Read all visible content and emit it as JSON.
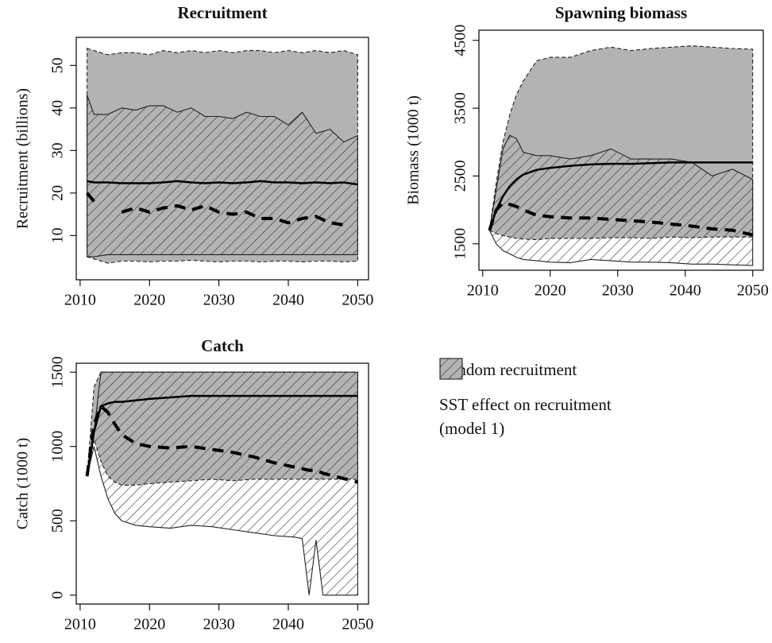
{
  "chart_data": [
    {
      "type": "line",
      "title": "Recruitment",
      "y_label": "Recruitment (billions)",
      "x": [
        2011,
        2012,
        2014,
        2016,
        2018,
        2020,
        2022,
        2024,
        2026,
        2028,
        2030,
        2032,
        2034,
        2036,
        2038,
        2040,
        2042,
        2044,
        2046,
        2048,
        2050
      ],
      "xlim": [
        2009.44,
        2051.56
      ],
      "xticks": [
        2010,
        2020,
        2030,
        2040,
        2050
      ],
      "ylim": [
        -0.4,
        56.6
      ],
      "yticks": [
        10,
        20,
        30,
        40,
        50
      ],
      "series": [
        {
          "kind": "band",
          "fill": "#b3b3b3",
          "edge": "dashed",
          "upper": [
            54,
            53.5,
            52.5,
            53,
            53,
            52.5,
            53.5,
            53,
            53.5,
            53,
            53.5,
            53,
            53.5,
            53.5,
            53,
            53.5,
            53,
            53.5,
            53,
            53.5,
            52.5
          ],
          "lower": [
            5,
            4.5,
            3.5,
            4,
            4,
            3.8,
            4,
            4,
            4.2,
            4,
            3.8,
            4,
            4,
            3.8,
            4,
            4,
            3.8,
            4,
            4,
            3.8,
            4
          ]
        },
        {
          "kind": "band",
          "fill": "hatch",
          "edge": "solid",
          "upper": [
            43,
            38.5,
            38.5,
            40,
            39.5,
            40.5,
            40.5,
            39,
            40,
            38,
            38,
            37.5,
            39,
            38,
            38,
            36,
            39,
            34,
            35,
            32,
            33.5
          ],
          "lower": [
            5,
            5,
            5.5,
            5.5,
            5.5,
            5.5,
            5.5,
            5.5,
            5.5,
            5.5,
            5.5,
            5.5,
            5.5,
            5.5,
            5.5,
            5.5,
            5.5,
            5.5,
            5.5,
            5.5,
            5.5
          ]
        },
        {
          "kind": "line",
          "dash": false,
          "values": [
            22.8,
            22.5,
            22.5,
            22.3,
            22.3,
            22.3,
            22.5,
            22.8,
            22.5,
            22.3,
            22.5,
            22.3,
            22.5,
            22.8,
            22.5,
            22.5,
            22.3,
            22.5,
            22.3,
            22.5,
            22
          ]
        },
        {
          "kind": "line",
          "dash": true,
          "values": [
            20,
            18,
            null,
            15.5,
            16.5,
            15.5,
            16.5,
            17,
            16,
            17,
            15.5,
            15,
            15.5,
            14,
            14,
            13,
            14,
            14.5,
            13,
            12.5,
            null
          ]
        }
      ]
    },
    {
      "type": "line",
      "title": "Spawning biomass",
      "y_label": "Biomass (1000 t)",
      "x": [
        2011,
        2012,
        2013,
        2014,
        2015,
        2016,
        2018,
        2020,
        2023,
        2026,
        2029,
        2032,
        2035,
        2038,
        2041,
        2044,
        2047,
        2050
      ],
      "xlim": [
        2009.44,
        2051.56
      ],
      "xticks": [
        2010,
        2020,
        2030,
        2040,
        2050
      ],
      "ylim": [
        1110,
        4650
      ],
      "yticks": [
        1500,
        2500,
        3500,
        4500
      ],
      "series": [
        {
          "kind": "band",
          "fill": "#b3b3b3",
          "edge": "dashed",
          "upper": [
            1700,
            2400,
            3000,
            3400,
            3700,
            3900,
            4200,
            4250,
            4250,
            4350,
            4400,
            4350,
            4380,
            4400,
            4420,
            4400,
            4380,
            4370
          ],
          "lower": [
            1700,
            1650,
            1620,
            1600,
            1580,
            1570,
            1560,
            1580,
            1580,
            1580,
            1590,
            1590,
            1580,
            1600,
            1590,
            1600,
            1600,
            1600
          ]
        },
        {
          "kind": "band",
          "fill": "hatch",
          "edge": "solid",
          "upper": [
            1700,
            2300,
            2900,
            3100,
            3050,
            2850,
            2800,
            2800,
            2750,
            2800,
            2900,
            2750,
            2750,
            2750,
            2700,
            2500,
            2600,
            2450
          ],
          "lower": [
            1700,
            1500,
            1400,
            1350,
            1300,
            1270,
            1250,
            1230,
            1220,
            1270,
            1250,
            1230,
            1230,
            1220,
            1200,
            1200,
            1190,
            1180
          ]
        },
        {
          "kind": "line",
          "dash": false,
          "values": [
            1700,
            2000,
            2200,
            2350,
            2450,
            2520,
            2590,
            2620,
            2650,
            2670,
            2680,
            2680,
            2690,
            2700,
            2700,
            2700,
            2700,
            2700
          ]
        },
        {
          "kind": "line",
          "dash": true,
          "values": [
            1700,
            2000,
            2100,
            2080,
            2050,
            2000,
            1920,
            1900,
            1880,
            1880,
            1860,
            1840,
            1820,
            1790,
            1760,
            1720,
            1700,
            1630
          ]
        }
      ]
    },
    {
      "type": "line",
      "title": "Catch",
      "y_label": "Catch (1000 t)",
      "x": [
        2011,
        2012,
        2013,
        2014,
        2015,
        2016,
        2018,
        2020,
        2023,
        2026,
        2029,
        2032,
        2035,
        2038,
        2041,
        2042,
        2043,
        2044,
        2045,
        2050
      ],
      "xlim": [
        2009.44,
        2051.56
      ],
      "xticks": [
        2010,
        2020,
        2030,
        2040,
        2050
      ],
      "ylim": [
        -60,
        1560
      ],
      "yticks": [
        0,
        500,
        1000,
        1500
      ],
      "series": [
        {
          "kind": "band",
          "fill": "#b3b3b3",
          "edge": "dashed",
          "upper": [
            800,
            1400,
            1500,
            1500,
            1500,
            1500,
            1500,
            1500,
            1500,
            1500,
            1500,
            1500,
            1500,
            1500,
            1500,
            1500,
            1500,
            1500,
            1500,
            1500
          ],
          "lower": [
            800,
            1050,
            900,
            800,
            760,
            740,
            740,
            750,
            760,
            770,
            780,
            770,
            780,
            780,
            780,
            780,
            780,
            780,
            780,
            780
          ]
        },
        {
          "kind": "band",
          "fill": "hatch",
          "edge": "solid",
          "upper": [
            800,
            1100,
            1500,
            1500,
            1500,
            1500,
            1500,
            1500,
            1500,
            1500,
            1500,
            1500,
            1500,
            1500,
            1500,
            1500,
            1500,
            1500,
            1500,
            1500
          ],
          "lower": [
            800,
            1000,
            800,
            650,
            550,
            500,
            470,
            460,
            450,
            470,
            460,
            440,
            420,
            400,
            390,
            380,
            0,
            370,
            0,
            0
          ]
        },
        {
          "kind": "line",
          "dash": false,
          "values": [
            800,
            1100,
            1270,
            1290,
            1300,
            1300,
            1310,
            1320,
            1330,
            1340,
            1340,
            1340,
            1340,
            1340,
            1340,
            1340,
            1340,
            1340,
            1340,
            1340
          ]
        },
        {
          "kind": "line",
          "dash": true,
          "values": [
            800,
            1150,
            1270,
            1230,
            1150,
            1080,
            1020,
            1000,
            990,
            1000,
            980,
            960,
            930,
            890,
            860,
            850,
            840,
            840,
            820,
            760
          ]
        }
      ]
    }
  ],
  "legend": {
    "entries": [
      {
        "label": "Random recruitment",
        "fill": "#b3b3b3",
        "edge": "dashed"
      },
      {
        "label": "SST effect on recruitment (model 1)",
        "fill": "hatch",
        "edge": "solid"
      }
    ]
  }
}
